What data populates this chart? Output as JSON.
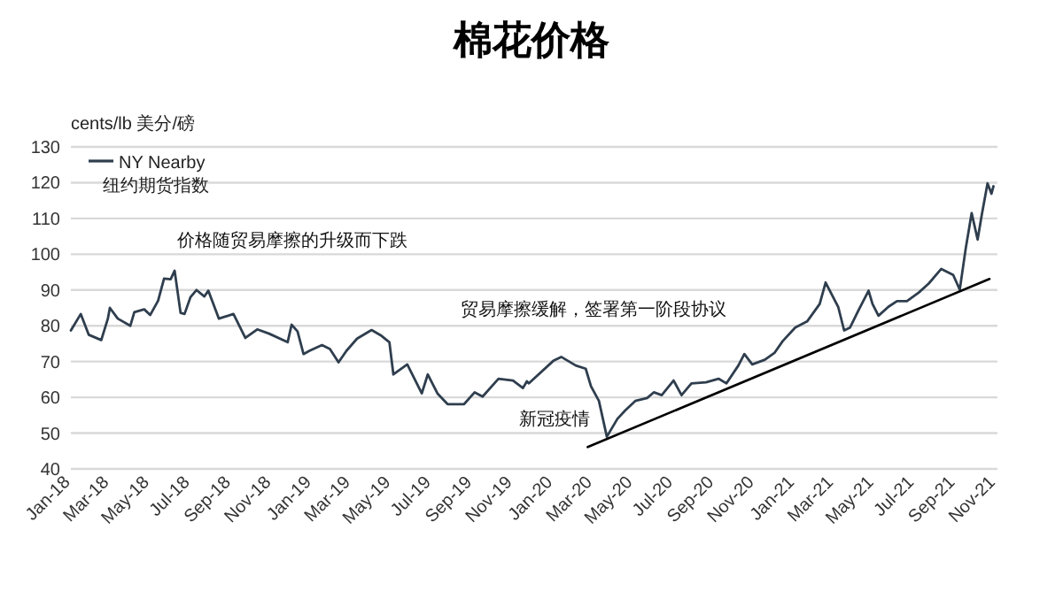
{
  "chart_data": {
    "type": "line",
    "title": "棉花价格",
    "ylabel": "cents/lb 美分/磅",
    "annotations": [
      "价格随贸易摩擦的升级而下跌",
      "贸易摩擦缓解，签署第一阶段协议",
      "新冠疫情"
    ],
    "xlim": [
      "2018-01-01",
      "2021-11-03"
    ],
    "ylim": [
      40,
      130
    ],
    "yticks": [
      40,
      50,
      60,
      70,
      80,
      90,
      100,
      110,
      120,
      130
    ],
    "xticks": [
      {
        "value": "2018-01-01",
        "label": "Jan-18"
      },
      {
        "value": "2018-03-01",
        "label": "Mar-18"
      },
      {
        "value": "2018-05-01",
        "label": "May-18"
      },
      {
        "value": "2018-07-01",
        "label": "Jul-18"
      },
      {
        "value": "2018-09-01",
        "label": "Sep-18"
      },
      {
        "value": "2018-11-01",
        "label": "Nov-18"
      },
      {
        "value": "2019-01-01",
        "label": "Jan-19"
      },
      {
        "value": "2019-03-01",
        "label": "Mar-19"
      },
      {
        "value": "2019-05-01",
        "label": "May-19"
      },
      {
        "value": "2019-07-01",
        "label": "Jul-19"
      },
      {
        "value": "2019-09-01",
        "label": "Sep-19"
      },
      {
        "value": "2019-11-01",
        "label": "Nov-19"
      },
      {
        "value": "2020-01-01",
        "label": "Jan-20"
      },
      {
        "value": "2020-03-01",
        "label": "Mar-20"
      },
      {
        "value": "2020-05-01",
        "label": "May-20"
      },
      {
        "value": "2020-07-01",
        "label": "Jul-20"
      },
      {
        "value": "2020-09-01",
        "label": "Sep-20"
      },
      {
        "value": "2020-11-01",
        "label": "Nov-20"
      },
      {
        "value": "2021-01-01",
        "label": "Jan-21"
      },
      {
        "value": "2021-03-01",
        "label": "Mar-21"
      },
      {
        "value": "2021-05-01",
        "label": "May-21"
      },
      {
        "value": "2021-07-01",
        "label": "Jul-21"
      },
      {
        "value": "2021-09-01",
        "label": "Sep-21"
      },
      {
        "value": "2021-11-01",
        "label": "Nov-21"
      }
    ],
    "grid": "y",
    "legend": "top left",
    "marker": "none",
    "line_style": "solid",
    "series": [
      {
        "name": "NY Nearby\n纽约期货指数",
        "color": "#2f3e4e",
        "x": [
          "2018-01-01",
          "2018-01-16",
          "2018-01-28",
          "2018-02-16",
          "2018-02-26",
          "2018-03-01",
          "2018-03-13",
          "2018-04-01",
          "2018-04-07",
          "2018-04-22",
          "2018-05-01",
          "2018-05-13",
          "2018-05-22",
          "2018-06-01",
          "2018-06-07",
          "2018-06-16",
          "2018-06-22",
          "2018-07-01",
          "2018-07-10",
          "2018-07-22",
          "2018-07-28",
          "2018-08-13",
          "2018-09-04",
          "2018-09-22",
          "2018-10-10",
          "2018-10-28",
          "2018-11-25",
          "2018-12-01",
          "2018-12-10",
          "2018-12-19",
          "2018-12-28",
          "2019-01-16",
          "2019-01-28",
          "2019-02-10",
          "2019-02-22",
          "2019-03-10",
          "2019-04-01",
          "2019-04-16",
          "2019-04-28",
          "2019-05-04",
          "2019-05-25",
          "2019-06-16",
          "2019-06-25",
          "2019-07-10",
          "2019-07-25",
          "2019-08-19",
          "2019-09-04",
          "2019-09-16",
          "2019-10-10",
          "2019-11-01",
          "2019-11-16",
          "2019-11-22",
          "2019-11-25",
          "2020-01-01",
          "2020-01-13",
          "2020-02-04",
          "2020-02-19",
          "2020-02-27",
          "2020-03-10",
          "2020-03-22",
          "2020-04-07",
          "2020-04-19",
          "2020-05-04",
          "2020-05-22",
          "2020-06-01",
          "2020-06-13",
          "2020-07-01",
          "2020-07-13",
          "2020-07-28",
          "2020-08-19",
          "2020-09-07",
          "2020-09-19",
          "2020-10-07",
          "2020-10-16",
          "2020-10-28",
          "2020-11-16",
          "2020-12-01",
          "2020-12-13",
          "2021-01-01",
          "2021-01-19",
          "2021-02-07",
          "2021-02-16",
          "2021-02-26",
          "2021-03-07",
          "2021-03-16",
          "2021-03-25",
          "2021-04-07",
          "2021-04-22",
          "2021-04-28",
          "2021-05-07",
          "2021-05-22",
          "2021-06-04",
          "2021-06-19",
          "2021-07-07",
          "2021-07-22",
          "2021-08-10",
          "2021-08-28",
          "2021-09-07",
          "2021-09-16",
          "2021-09-25",
          "2021-10-04",
          "2021-10-10",
          "2021-10-19",
          "2021-10-25",
          "2021-10-28"
        ],
        "values": [
          78.7,
          83.3,
          77.5,
          76,
          82,
          85,
          82,
          80,
          83.8,
          84.6,
          83,
          87,
          93.2,
          93,
          95.4,
          83.6,
          83.3,
          88,
          90,
          88.2,
          89.8,
          82,
          83.3,
          76.6,
          79,
          77.8,
          75.4,
          80.3,
          78.4,
          72.1,
          73,
          74.6,
          73.5,
          69.8,
          73,
          76.4,
          78.8,
          77.2,
          75.4,
          66.4,
          69.2,
          61.1,
          66.4,
          61,
          58.1,
          58.1,
          61.4,
          60.2,
          65.2,
          64.7,
          62.6,
          64.5,
          63.9,
          70.2,
          71.3,
          68.9,
          68,
          63.1,
          59,
          49,
          54,
          56.4,
          59,
          59.8,
          61.4,
          60.6,
          64.7,
          60.6,
          63.9,
          64.2,
          65.2,
          63.9,
          68.9,
          72.1,
          69.2,
          70.5,
          72.5,
          75.7,
          79.5,
          81.2,
          86.1,
          92.1,
          88.5,
          85.3,
          78.7,
          79.5,
          84.4,
          89.8,
          86.1,
          82.8,
          85.3,
          86.9,
          86.9,
          89.3,
          91.8,
          95.9,
          94.2,
          90.1,
          101.6,
          111.5,
          104.1,
          110.7,
          119.8,
          116.9,
          119
        ]
      },
      {
        "color": "#000000",
        "x": [
          "2020-02-22",
          "2021-10-22"
        ],
        "values": [
          46.1,
          93.1
        ]
      }
    ]
  }
}
